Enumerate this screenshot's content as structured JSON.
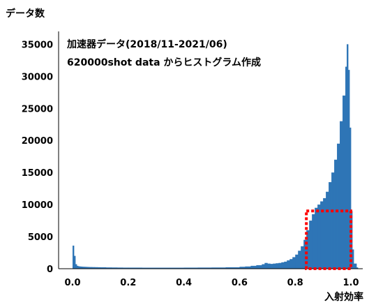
{
  "chart_data": {
    "type": "bar",
    "ylabel": "データ数",
    "xlabel": "入射効率",
    "annotation_lines": [
      "加速器データ(2018/11-2021/06)",
      "620000shot data からヒストグラム作成"
    ],
    "xlim": [
      -0.05,
      1.1
    ],
    "ylim": [
      0,
      37000
    ],
    "xticks": [
      0.0,
      0.2,
      0.4,
      0.6,
      0.8,
      1.0
    ],
    "xtick_labels": [
      "0.0",
      "0.2",
      "0.4",
      "0.6",
      "0.8",
      "1.0"
    ],
    "yticks": [
      0,
      5000,
      10000,
      15000,
      20000,
      25000,
      30000,
      35000
    ],
    "ytick_labels": [
      "0",
      "5000",
      "10000",
      "15000",
      "20000",
      "25000",
      "30000",
      "35000"
    ],
    "bar_color": "#2e75b6",
    "highlight": {
      "x_range": [
        0.84,
        1.0
      ],
      "y_range": [
        0,
        9000
      ],
      "style": "dotted",
      "color": "#ff0000"
    },
    "bin_width": 0.005,
    "bins": [
      [
        0.0,
        3600
      ],
      [
        0.005,
        2000
      ],
      [
        0.01,
        700
      ],
      [
        0.015,
        450
      ],
      [
        0.02,
        380
      ],
      [
        0.025,
        350
      ],
      [
        0.03,
        330
      ],
      [
        0.035,
        310
      ],
      [
        0.04,
        300
      ],
      [
        0.045,
        290
      ],
      [
        0.05,
        280
      ],
      [
        0.055,
        270
      ],
      [
        0.06,
        260
      ],
      [
        0.07,
        250
      ],
      [
        0.08,
        240
      ],
      [
        0.09,
        230
      ],
      [
        0.1,
        220
      ],
      [
        0.12,
        200
      ],
      [
        0.14,
        190
      ],
      [
        0.16,
        180
      ],
      [
        0.18,
        170
      ],
      [
        0.2,
        170
      ],
      [
        0.25,
        160
      ],
      [
        0.3,
        160
      ],
      [
        0.35,
        160
      ],
      [
        0.4,
        170
      ],
      [
        0.45,
        180
      ],
      [
        0.5,
        190
      ],
      [
        0.55,
        220
      ],
      [
        0.6,
        300
      ],
      [
        0.62,
        350
      ],
      [
        0.64,
        450
      ],
      [
        0.66,
        550
      ],
      [
        0.68,
        700
      ],
      [
        0.69,
        900
      ],
      [
        0.7,
        800
      ],
      [
        0.71,
        750
      ],
      [
        0.72,
        800
      ],
      [
        0.73,
        850
      ],
      [
        0.74,
        900
      ],
      [
        0.75,
        1000
      ],
      [
        0.76,
        1100
      ],
      [
        0.77,
        1300
      ],
      [
        0.78,
        1500
      ],
      [
        0.79,
        1800
      ],
      [
        0.8,
        2200
      ],
      [
        0.81,
        2800
      ],
      [
        0.82,
        3500
      ],
      [
        0.83,
        4500
      ],
      [
        0.84,
        6000
      ],
      [
        0.85,
        7500
      ],
      [
        0.86,
        8500
      ],
      [
        0.87,
        9500
      ],
      [
        0.88,
        10000
      ],
      [
        0.89,
        10500
      ],
      [
        0.9,
        11000
      ],
      [
        0.91,
        12000
      ],
      [
        0.92,
        13500
      ],
      [
        0.93,
        15000
      ],
      [
        0.94,
        17000
      ],
      [
        0.95,
        19500
      ],
      [
        0.96,
        23000
      ],
      [
        0.97,
        27000
      ],
      [
        0.98,
        31500
      ],
      [
        0.985,
        35000
      ],
      [
        0.99,
        31000
      ],
      [
        0.995,
        22000
      ],
      [
        1.0,
        9000
      ],
      [
        1.005,
        3000
      ],
      [
        1.01,
        800
      ],
      [
        1.02,
        200
      ]
    ]
  }
}
